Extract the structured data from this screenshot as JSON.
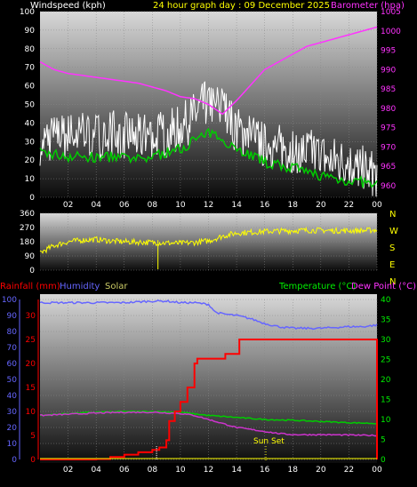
{
  "header": {
    "left_label": "Windspeed (kph)",
    "title": "24 hour graph day : 09 December 2025",
    "right_label": "Barometer (hpa)"
  },
  "bottom_header": {
    "rainfall": "Rainfall (mm)",
    "humidity": "Humidity",
    "solar": "Solar",
    "temperature": "Temperature (°C)",
    "dewpoint": "Dew Point (°C)"
  },
  "compass": [
    "N",
    "W",
    "S",
    "E",
    "N"
  ],
  "annotation": "Sun Set",
  "colors": {
    "wind_gust": "#ffffff",
    "wind_avg": "#00cc00",
    "barometer": "#ff33ff",
    "direction": "#ffff00",
    "rainfall": "#ff0000",
    "humidity": "#6666ff",
    "solar": "#ffff00",
    "temperature": "#00cc00",
    "dewpoint": "#cc33cc",
    "header_title": "#ffff00"
  },
  "chart_data": [
    {
      "type": "line",
      "x_ticks": [
        "02",
        "04",
        "06",
        "08",
        "10",
        "12",
        "14",
        "16",
        "18",
        "20",
        "22",
        "00"
      ],
      "ylim_left": [
        0,
        100
      ],
      "ylim_right": [
        957,
        1005
      ],
      "left_ticks": [
        0,
        10,
        20,
        30,
        40,
        50,
        60,
        70,
        80,
        90,
        100
      ],
      "right_ticks": [
        960,
        965,
        970,
        975,
        980,
        985,
        990,
        995,
        1000,
        1005
      ],
      "series": [
        {
          "name": "Windspeed (kph)",
          "axis": "left",
          "x": [
            0,
            1,
            2,
            3,
            4,
            5,
            6,
            7,
            8,
            9,
            10,
            11,
            12,
            13,
            14,
            15,
            16,
            17,
            18,
            19,
            20,
            21,
            22,
            23,
            24
          ],
          "values": [
            30,
            32,
            33,
            34,
            33,
            35,
            33,
            32,
            34,
            34,
            37,
            44,
            52,
            48,
            36,
            33,
            28,
            27,
            26,
            25,
            22,
            20,
            18,
            15,
            12
          ]
        },
        {
          "name": "Barometer (hpa)",
          "axis": "right",
          "x": [
            0,
            1,
            2,
            3,
            4,
            5,
            6,
            7,
            8,
            9,
            10,
            11,
            12,
            13,
            14,
            15,
            16,
            17,
            18,
            19,
            20,
            21,
            22,
            23,
            24
          ],
          "values": [
            992,
            990,
            989,
            988.5,
            988,
            987.5,
            987,
            986.5,
            985.5,
            984.5,
            983,
            982.5,
            981,
            978.5,
            982,
            986,
            990,
            992,
            994,
            996,
            997,
            998,
            999,
            1000,
            1001
          ]
        }
      ],
      "avg_series": {
        "x": [
          0,
          1,
          2,
          3,
          4,
          5,
          6,
          7,
          8,
          9,
          10,
          11,
          12,
          13,
          14,
          15,
          16,
          17,
          18,
          19,
          20,
          21,
          22,
          23,
          24
        ],
        "values": [
          24,
          23,
          22,
          22,
          21,
          22,
          21,
          20,
          22,
          24,
          26,
          31,
          34,
          32,
          26,
          23,
          19,
          17,
          16,
          13,
          12,
          10,
          9,
          8,
          6
        ]
      }
    },
    {
      "type": "line",
      "ylim": [
        0,
        360
      ],
      "y_ticks": [
        0,
        90,
        180,
        270,
        360
      ],
      "series": [
        {
          "name": "Wind Direction",
          "x": [
            0,
            1,
            2,
            3,
            4,
            5,
            6,
            7,
            8,
            9,
            10,
            11,
            12,
            13,
            14,
            15,
            16,
            17,
            18,
            19,
            20,
            21,
            22,
            23,
            24
          ],
          "values": [
            110,
            155,
            180,
            190,
            195,
            185,
            180,
            178,
            175,
            172,
            170,
            175,
            185,
            215,
            235,
            240,
            245,
            248,
            250,
            252,
            252,
            250,
            250,
            250,
            255
          ]
        }
      ]
    },
    {
      "type": "line",
      "x_ticks": [
        "02",
        "04",
        "06",
        "08",
        "10",
        "12",
        "14",
        "16",
        "18",
        "20",
        "22",
        "00"
      ],
      "left_ticks_pct": [
        0,
        10,
        20,
        30,
        40,
        50,
        60,
        70,
        80,
        90,
        100
      ],
      "left_ticks_mm": [
        0,
        5,
        10,
        15,
        20,
        25,
        30
      ],
      "right_ticks": [
        0,
        5,
        10,
        15,
        20,
        25,
        30,
        35,
        40
      ],
      "ylim_left": [
        0,
        100
      ],
      "ylim_right": [
        0,
        40
      ],
      "series": [
        {
          "name": "Humidity",
          "axis": "left",
          "x": [
            0,
            2,
            4,
            6,
            8,
            9,
            10,
            11,
            12,
            12.5,
            13,
            14,
            15,
            16,
            17,
            18,
            20,
            22,
            23,
            24
          ],
          "values": [
            98,
            98,
            98,
            98,
            99,
            99,
            98,
            98,
            97,
            92,
            91,
            90,
            88,
            85,
            83,
            82,
            82,
            83,
            83,
            84
          ]
        },
        {
          "name": "Rainfall (mm)",
          "axis": "left",
          "x": [
            0,
            3,
            4,
            5,
            6,
            7,
            8,
            8.5,
            9,
            9.2,
            9.6,
            10,
            10.5,
            11,
            11.2,
            12,
            13,
            13.2,
            14,
            14.2,
            15,
            22,
            23.8,
            24
          ],
          "values": [
            0,
            0,
            0.1,
            0.5,
            1,
            1.5,
            2,
            2.5,
            4,
            8,
            10,
            12,
            15,
            20,
            21,
            21,
            21,
            22,
            22,
            25,
            25,
            25,
            25,
            0
          ]
        },
        {
          "name": "Temperature (°C)",
          "axis": "right",
          "x": [
            0,
            2,
            4,
            6,
            8,
            10,
            12,
            14,
            16,
            18,
            20,
            22,
            24
          ],
          "values": [
            11,
            11.5,
            11.8,
            12,
            12,
            11.8,
            11,
            10.5,
            10,
            9.8,
            9.5,
            9.2,
            9
          ]
        },
        {
          "name": "Dew Point (°C)",
          "axis": "right",
          "x": [
            0,
            2,
            4,
            6,
            8,
            10,
            11,
            12,
            13,
            14,
            15,
            16,
            17,
            18,
            20,
            22,
            24
          ],
          "values": [
            11,
            11.3,
            11.6,
            11.8,
            11.8,
            11.5,
            11,
            10,
            9,
            8,
            7.5,
            7,
            6.5,
            6.2,
            6.2,
            6.1,
            6
          ]
        }
      ]
    }
  ]
}
